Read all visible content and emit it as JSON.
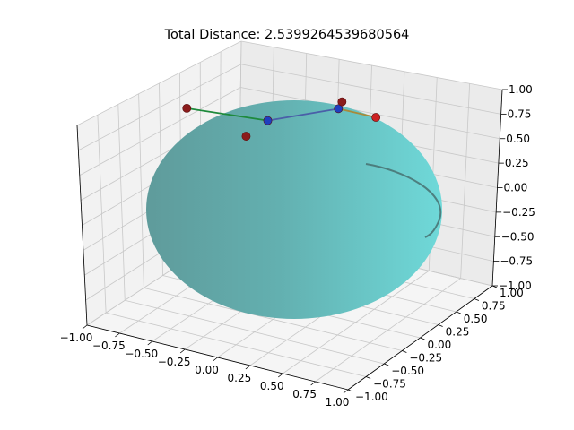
{
  "chart_data": {
    "type": "scatter",
    "projection": "3d",
    "title": "Total Distance: 2.5399264539680564",
    "xlim": [
      -1.0,
      1.0
    ],
    "ylim": [
      -1.0,
      1.0
    ],
    "zlim": [
      -1.0,
      1.0
    ],
    "x_ticks": [
      "−1.00",
      "−0.75",
      "−0.50",
      "−0.25",
      "0.00",
      "0.25",
      "0.50",
      "0.75",
      "1.00"
    ],
    "y_ticks": [
      "−1.00",
      "−0.75",
      "−0.50",
      "−0.25",
      "0.00",
      "0.25",
      "0.50",
      "0.75",
      "1.00"
    ],
    "z_ticks": [
      "−1.00",
      "−0.75",
      "−0.50",
      "−0.25",
      "0.00",
      "0.25",
      "0.50",
      "0.75",
      "1.00"
    ],
    "grid": true,
    "surface": {
      "shape": "sphere",
      "radius": 1.0,
      "color": "#66c9c9",
      "alpha": 0.85
    },
    "points": [
      {
        "x": -0.78,
        "y": 0.05,
        "z": 0.72,
        "color": "#8b1c1c"
      },
      {
        "x": -0.3,
        "y": 0.0,
        "z": 0.62,
        "color": "#8b1c1c"
      },
      {
        "x": -0.26,
        "y": 0.22,
        "z": 0.68,
        "color": "#1f3fbf"
      },
      {
        "x": 0.05,
        "y": 0.62,
        "z": 0.7,
        "color": "#1f3fbf"
      },
      {
        "x": 0.02,
        "y": 0.72,
        "z": 0.71,
        "color": "#8b1c1c"
      },
      {
        "x": 0.35,
        "y": 0.6,
        "z": 0.72,
        "color": "#cc2222"
      }
    ],
    "segments": [
      {
        "from": 0,
        "to": 2,
        "color": "#1e8a3c"
      },
      {
        "from": 2,
        "to": 3,
        "color": "#4a5fa8"
      },
      {
        "from": 3,
        "to": 5,
        "color": "#a88a3a"
      }
    ]
  }
}
